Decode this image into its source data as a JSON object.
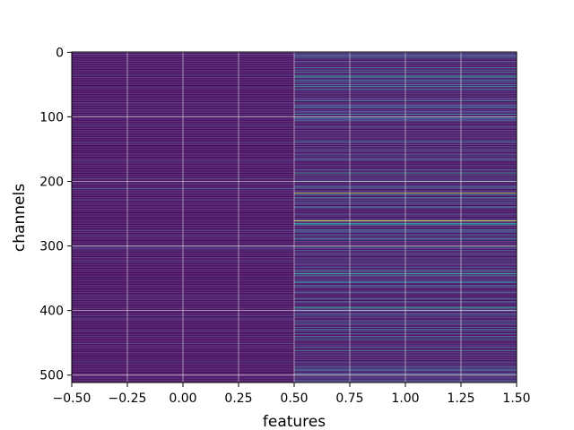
{
  "chart_data": {
    "type": "heatmap",
    "title": "",
    "xlabel": "features",
    "ylabel": "channels",
    "xlim": [
      -0.5,
      1.5
    ],
    "ylim": [
      511.5,
      -0.5
    ],
    "y_inverted": true,
    "grid": true,
    "colormap": "viridis",
    "n_rows": 512,
    "n_cols": 2,
    "column_x": [
      0,
      1
    ],
    "x_ticks": [
      -0.5,
      -0.25,
      0.0,
      0.25,
      0.5,
      0.75,
      1.0,
      1.25,
      1.5
    ],
    "x_tick_labels": [
      "−0.50",
      "−0.25",
      "0.00",
      "0.25",
      "0.50",
      "0.75",
      "1.00",
      "1.25",
      "1.50"
    ],
    "y_ticks": [
      0,
      100,
      200,
      300,
      400,
      500
    ],
    "y_tick_labels": [
      "0",
      "100",
      "200",
      "300",
      "400",
      "500"
    ],
    "column_0_description_level": "near-uniform low values",
    "highlighted_rows_column_1": [
      {
        "row": 187,
        "value": 0.7
      },
      {
        "row": 218,
        "value": 0.95
      },
      {
        "row": 261,
        "value": 1.0
      },
      {
        "row": 343,
        "value": 0.75
      }
    ]
  },
  "colors": {
    "background": "#ffffff",
    "grid": "#e8e8e8",
    "viridis_low": "#440154",
    "viridis_mid": "#21918c",
    "viridis_high": "#fde725"
  }
}
